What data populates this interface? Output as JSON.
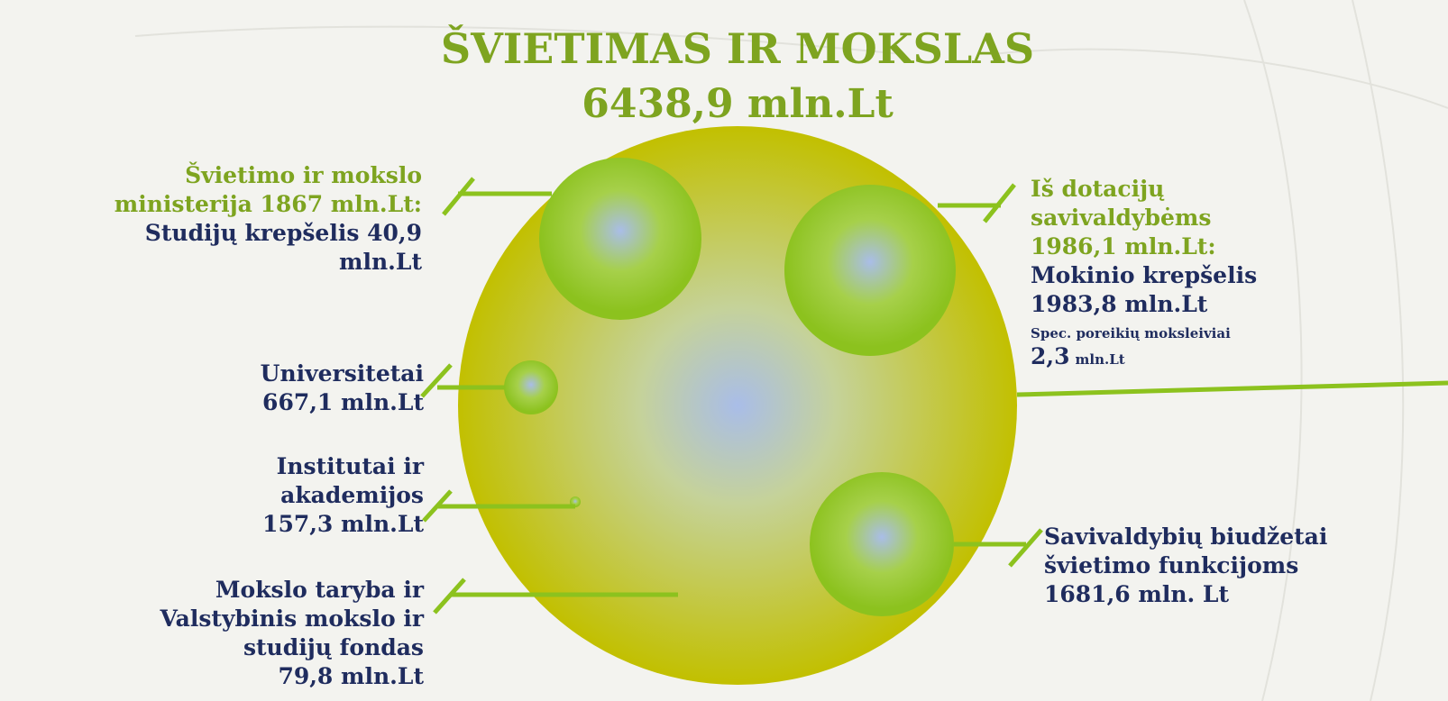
{
  "title": "ŠVIETIMAS IR MOKSLAS",
  "total": "6438,9 mln.Lt",
  "left": [
    {
      "heading": [
        "Švietimo ir mokslo",
        "ministerija 1867 mln.Lt:"
      ],
      "detail": [
        "Studijų krepšelis 40,9",
        "mln.Lt"
      ]
    },
    {
      "detail": [
        "Universitetai",
        "667,1 mln.Lt"
      ]
    },
    {
      "detail": [
        "Institutai ir",
        "akademijos",
        "157,3 mln.Lt"
      ]
    },
    {
      "detail": [
        "Mokslo taryba ir",
        "Valstybinis mokslo ir",
        "studijų fondas",
        "79,8 mln.Lt"
      ]
    }
  ],
  "right": [
    {
      "heading": [
        "Iš dotacijų",
        "savivaldybėms",
        "1986,1 mln.Lt:"
      ],
      "detail": [
        "Mokinio krepšelis",
        "1983,8 mln.Lt"
      ],
      "note": "Spec. poreikių moksleiviai",
      "note_amount": "2,3",
      "note_unit": "mln.Lt"
    },
    {
      "detail": [
        "Savivaldybių biudžetai",
        "švietimo funkcijoms",
        "1681,6 mln. Lt"
      ]
    }
  ]
}
